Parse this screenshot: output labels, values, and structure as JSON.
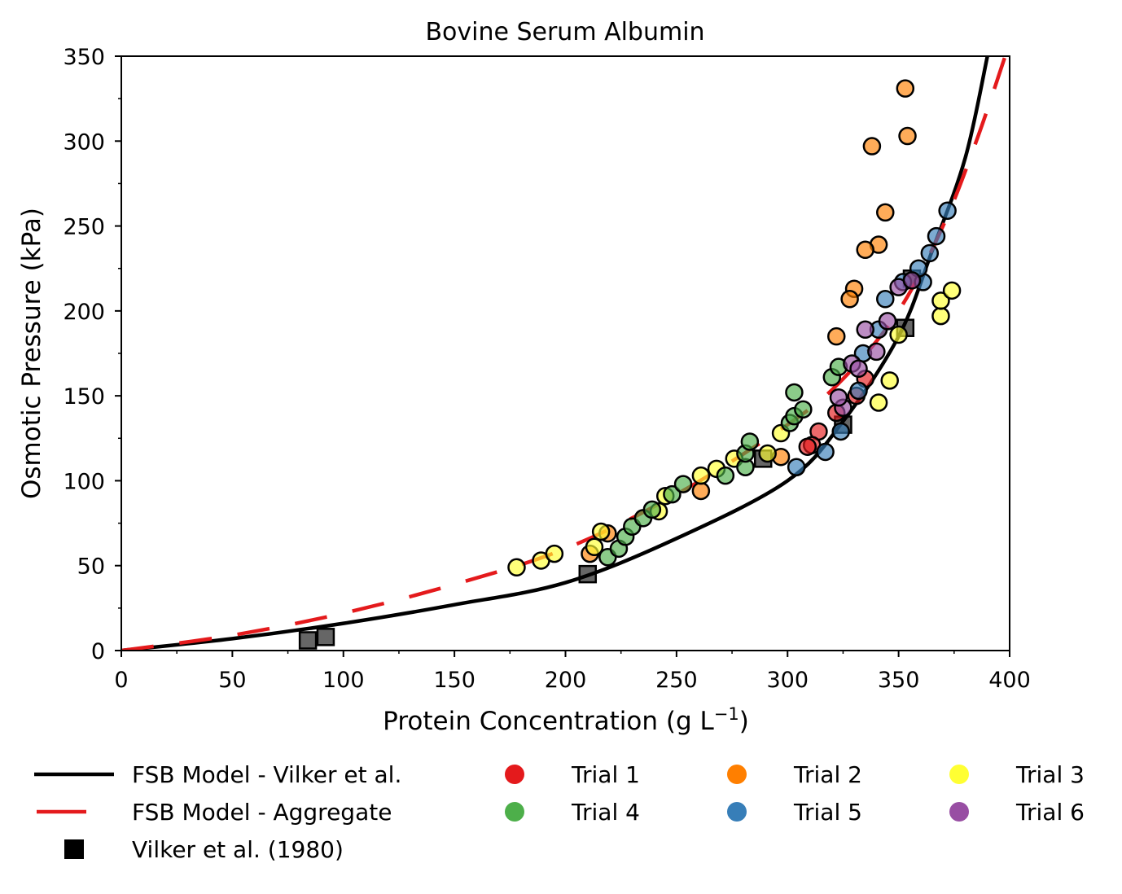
{
  "chart_data": {
    "type": "scatter",
    "title": "Bovine Serum Albumin",
    "xlabel": "Protein Concentration (g L",
    "xlabel_sup": "−1",
    "xlabel_end": ")",
    "ylabel": "Osmotic Pressure (kPa)",
    "xlim": [
      0,
      400
    ],
    "ylim": [
      0,
      350
    ],
    "xticks": [
      0,
      50,
      100,
      150,
      200,
      250,
      300,
      350,
      400
    ],
    "yticks": [
      0,
      50,
      100,
      150,
      200,
      250,
      300,
      350
    ],
    "grid": false,
    "legend_position": "bottom",
    "lines": [
      {
        "name": "FSB Model - Vilker et al.",
        "color": "#000000",
        "style": "solid",
        "x": [
          0,
          50,
          100,
          150,
          200,
          250,
          300,
          325,
          350,
          365,
          380,
          390
        ],
        "y": [
          0,
          7,
          16,
          27,
          40,
          66,
          100,
          135,
          185,
          235,
          290,
          350
        ]
      },
      {
        "name": "FSB Model - Aggregate",
        "color": "#e41a1c",
        "style": "dashed",
        "x": [
          0,
          50,
          100,
          150,
          200,
          250,
          300,
          325,
          350,
          370,
          385,
          398
        ],
        "y": [
          0,
          9,
          22,
          39,
          60,
          92,
          133,
          160,
          200,
          250,
          300,
          350
        ]
      }
    ],
    "reference": {
      "name": "Vilker et al. (1980)",
      "color": "#000000",
      "x": [
        84,
        92,
        210,
        289,
        325,
        353,
        356
      ],
      "y": [
        6,
        8,
        45,
        113,
        133,
        190,
        219
      ]
    },
    "series": [
      {
        "name": "Trial 1",
        "color": "#e41a1c",
        "x": [
          314,
          311,
          322,
          331,
          335,
          309
        ],
        "y": [
          129,
          121,
          140,
          150,
          160,
          120
        ]
      },
      {
        "name": "Trial 2",
        "color": "#ff7f00",
        "x": [
          353,
          354,
          338,
          344,
          341,
          335,
          330,
          328,
          322,
          297,
          261,
          219,
          211
        ],
        "y": [
          331,
          303,
          297,
          258,
          239,
          236,
          213,
          207,
          185,
          114,
          94,
          69,
          57
        ]
      },
      {
        "name": "Trial 3",
        "color": "#ffff33",
        "x": [
          178,
          189,
          195,
          213,
          216,
          242,
          245,
          261,
          268,
          276,
          291,
          297,
          341,
          346,
          350,
          369,
          369,
          374
        ],
        "y": [
          49,
          53,
          57,
          61,
          70,
          82,
          91,
          103,
          107,
          113,
          116,
          128,
          146,
          159,
          186,
          197,
          206,
          212
        ]
      },
      {
        "name": "Trial 4",
        "color": "#4daf4a",
        "x": [
          219,
          224,
          227,
          230,
          235,
          239,
          248,
          253,
          272,
          281,
          281,
          283,
          301,
          303,
          303,
          307,
          320,
          323
        ],
        "y": [
          55,
          60,
          67,
          73,
          78,
          83,
          92,
          98,
          103,
          108,
          116,
          123,
          134,
          138,
          152,
          142,
          161,
          167
        ]
      },
      {
        "name": "Trial 5",
        "color": "#377eb8",
        "x": [
          304,
          317,
          324,
          332,
          334,
          341,
          344,
          352,
          361,
          359,
          364,
          367,
          372
        ],
        "y": [
          108,
          117,
          129,
          153,
          175,
          189,
          207,
          217,
          217,
          225,
          234,
          244,
          259
        ]
      },
      {
        "name": "Trial 6",
        "color": "#984ea3",
        "x": [
          325,
          329,
          332,
          335,
          340,
          345,
          350,
          356,
          323
        ],
        "y": [
          143,
          169,
          166,
          189,
          176,
          194,
          214,
          218,
          149
        ]
      }
    ]
  }
}
